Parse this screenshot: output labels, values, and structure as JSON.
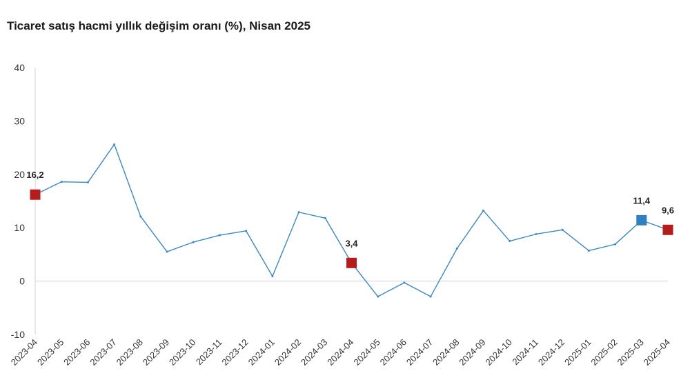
{
  "chart_data": {
    "type": "line",
    "title": "Ticaret satış hacmi yıllık değişim oranı (%), Nisan 2025",
    "xlabel": "",
    "ylabel": "",
    "ylim": [
      -10,
      40
    ],
    "yticks": [
      -10,
      0,
      10,
      20,
      30,
      40
    ],
    "grid": false,
    "categories": [
      "2023-04",
      "2023-05",
      "2023-06",
      "2023-07",
      "2023-08",
      "2023-09",
      "2023-10",
      "2023-11",
      "2023-12",
      "2024-01",
      "2024-02",
      "2024-03",
      "2024-04",
      "2024-05",
      "2024-06",
      "2024-07",
      "2024-08",
      "2024-09",
      "2024-10",
      "2024-11",
      "2024-12",
      "2025-01",
      "2025-02",
      "2025-03",
      "2025-04"
    ],
    "series": [
      {
        "values": [
          16.2,
          18.6,
          18.5,
          25.6,
          12.1,
          5.5,
          7.3,
          8.6,
          9.4,
          0.9,
          12.9,
          11.8,
          3.4,
          -2.9,
          -0.3,
          -2.9,
          6.1,
          13.2,
          7.5,
          8.8,
          9.6,
          5.7,
          6.9,
          11.4,
          9.6
        ],
        "color": "#3a87c8"
      }
    ],
    "highlights": [
      {
        "category": "2023-04",
        "value": 16.2,
        "label": "16,2",
        "color": "#b71c1c"
      },
      {
        "category": "2024-04",
        "value": 3.4,
        "label": "3,4",
        "color": "#b71c1c"
      },
      {
        "category": "2025-03",
        "value": 11.4,
        "label": "11,4",
        "color": "#2f7fc1"
      },
      {
        "category": "2025-04",
        "value": 9.6,
        "label": "9,6",
        "color": "#b71c1c"
      }
    ],
    "colors": {
      "line": "#3a87c8",
      "axis": "#d0d0d0",
      "text": "#222222"
    }
  }
}
